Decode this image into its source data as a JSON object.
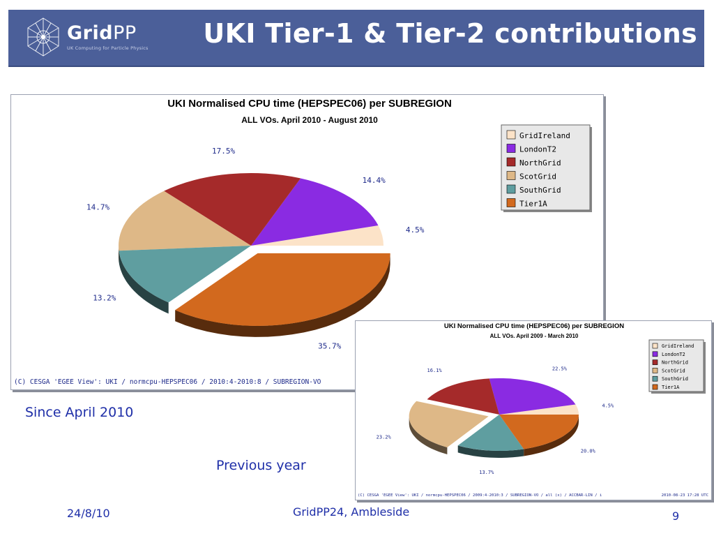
{
  "header": {
    "logo_bold": "Grid",
    "logo_light": "PP",
    "logo_tagline": "UK Computing for Particle Physics",
    "title": "UKI Tier-1 & Tier-2 contributions"
  },
  "colors": {
    "header_bg": "#4b5f99",
    "caption_text": "#1f2fa8",
    "GridIreland": "#fce3c8",
    "LondonT2": "#8a2be2",
    "NorthGrid": "#a52a2a",
    "ScotGrid": "#deb887",
    "SouthGrid": "#5f9ea0",
    "Tier1A": "#d2691e"
  },
  "captions": {
    "since": "Since April 2010",
    "previous": "Previous year"
  },
  "footer": {
    "date": "24/8/10",
    "venue": "GridPP24, Ambleside",
    "page": "9"
  },
  "chart_data": [
    {
      "type": "pie",
      "title": "UKI Normalised CPU time (HEPSPEC06) per SUBREGION",
      "subtitle": "ALL VOs. April 2010 - August 2010",
      "legend_position": "top-right",
      "legend": [
        "GridIreland",
        "LondonT2",
        "NorthGrid",
        "ScotGrid",
        "SouthGrid",
        "Tier1A"
      ],
      "slices": [
        {
          "name": "GridIreland",
          "value": 4.5,
          "label": "4.5%"
        },
        {
          "name": "LondonT2",
          "value": 14.4,
          "label": "14.4%"
        },
        {
          "name": "NorthGrid",
          "value": 17.5,
          "label": "17.5%"
        },
        {
          "name": "ScotGrid",
          "value": 14.7,
          "label": "14.7%"
        },
        {
          "name": "SouthGrid",
          "value": 13.2,
          "label": "13.2%"
        },
        {
          "name": "Tier1A",
          "value": 35.7,
          "label": "35.7%"
        }
      ],
      "exploded": "Tier1A",
      "footnote": "(C) CESGA 'EGEE View': UKI / normcpu-HEPSPEC06 / 2010:4-2010:8 / SUBREGION-VO",
      "timestamp": ""
    },
    {
      "type": "pie",
      "title": "UKI Normalised CPU time (HEPSPEC06) per SUBREGION",
      "subtitle": "ALL VOs. April 2009 - March 2010",
      "legend_position": "top-right",
      "legend": [
        "GridIreland",
        "LondonT2",
        "NorthGrid",
        "ScotGrid",
        "SouthGrid",
        "Tier1A"
      ],
      "slices": [
        {
          "name": "GridIreland",
          "value": 4.5,
          "label": "4.5%"
        },
        {
          "name": "LondonT2",
          "value": 22.5,
          "label": "22.5%"
        },
        {
          "name": "NorthGrid",
          "value": 16.1,
          "label": "16.1%"
        },
        {
          "name": "ScotGrid",
          "value": 23.2,
          "label": "23.2%"
        },
        {
          "name": "SouthGrid",
          "value": 13.7,
          "label": "13.7%"
        },
        {
          "name": "Tier1A",
          "value": 20.0,
          "label": "20.0%"
        }
      ],
      "exploded": "ScotGrid",
      "footnote": "(C) CESGA 'EGEE View': UKI / normcpu-HEPSPEC06 / 2009:4-2010:3 / SUBREGION-VO / all (x) / ACCBAR-LIN / i",
      "timestamp": "2010-08-23 17:28 UTC"
    }
  ]
}
